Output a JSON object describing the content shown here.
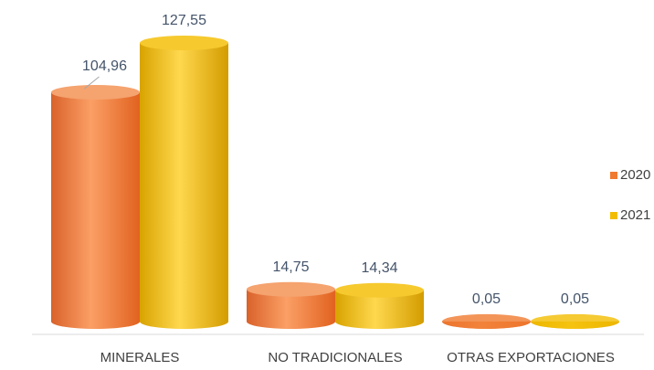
{
  "chart_data": {
    "type": "bar",
    "categories": [
      "MINERALES",
      "NO TRADICIONALES",
      "OTRAS EXPORTACIONES"
    ],
    "series": [
      {
        "name": "2020",
        "color": "#f07a30",
        "values": [
          104.96,
          14.75,
          0.05
        ],
        "value_labels": [
          "104,96",
          "14,75",
          "0,05"
        ]
      },
      {
        "name": "2021",
        "color": "#f2bd00",
        "values": [
          127.55,
          14.34,
          0.05
        ],
        "value_labels": [
          "127,55",
          "14,34",
          "0,05"
        ]
      }
    ],
    "legend": "right"
  }
}
